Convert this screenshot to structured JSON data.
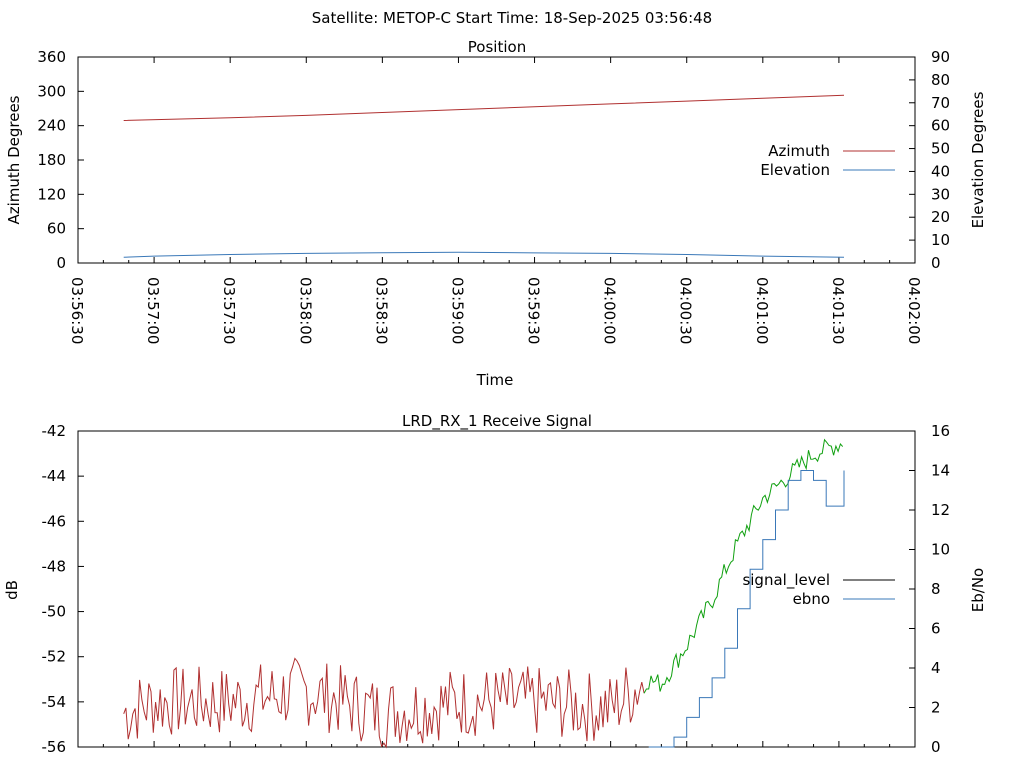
{
  "header": {
    "title": "Satellite: METOP-C    Start Time: 18-Sep-2025 03:56:48"
  },
  "colors": {
    "azimuth": "#b03030",
    "elevation": "#3a78b8",
    "signal_level_red": "#b03030",
    "signal_level_green": "#10a010",
    "signal_level_legend": "#000000",
    "ebno": "#3a78b8"
  },
  "chart_data": [
    {
      "type": "line",
      "title": "Position",
      "xlabel": "Time",
      "ylabel": "Azimuth Degrees",
      "y2label": "Elevation Degrees",
      "x_ticks": [
        "03:56:30",
        "03:57:00",
        "03:57:30",
        "03:58:00",
        "03:58:30",
        "03:59:00",
        "03:59:30",
        "04:00:00",
        "04:00:30",
        "04:01:00",
        "04:01:30",
        "04:02:00"
      ],
      "xlim_seconds": [
        0,
        330
      ],
      "ylim": [
        0,
        360
      ],
      "y_ticks": [
        0,
        60,
        120,
        180,
        240,
        300,
        360
      ],
      "y2lim": [
        0,
        90
      ],
      "y2_ticks": [
        0,
        10,
        20,
        30,
        40,
        50,
        60,
        70,
        80,
        90
      ],
      "legend": "right",
      "grid": false,
      "series": [
        {
          "name": "Azimuth",
          "axis": "left",
          "x": [
            "03:56:48",
            "03:57:30",
            "03:58:00",
            "03:58:30",
            "03:59:00",
            "03:59:30",
            "04:00:00",
            "04:00:30",
            "04:01:00",
            "04:01:32"
          ],
          "y": [
            249,
            254,
            258,
            263,
            268,
            273,
            278,
            283,
            288,
            293
          ]
        },
        {
          "name": "Elevation",
          "axis": "right",
          "x": [
            "03:56:48",
            "03:57:00",
            "03:57:30",
            "03:58:00",
            "03:58:30",
            "03:59:00",
            "03:59:30",
            "04:00:00",
            "04:00:30",
            "04:01:00",
            "04:01:32"
          ],
          "y": [
            2.5,
            3,
            3.7,
            4.2,
            4.5,
            4.7,
            4.4,
            4.2,
            3.7,
            3,
            2.5
          ]
        }
      ]
    },
    {
      "type": "line",
      "title": "LRD_RX_1 Receive Signal",
      "ylabel": "dB",
      "y2label": "Eb/No",
      "xlim_seconds": [
        0,
        330
      ],
      "ylim": [
        -56,
        -42
      ],
      "y_ticks": [
        -56,
        -54,
        -52,
        -50,
        -48,
        -46,
        -44,
        -42
      ],
      "y2lim": [
        0,
        16
      ],
      "y2_ticks": [
        0,
        2,
        4,
        6,
        8,
        10,
        12,
        14,
        16
      ],
      "legend": "right",
      "series": [
        {
          "name": "signal_level",
          "axis": "left",
          "noise_segment_end": "04:00:14",
          "x": [
            "03:56:48",
            "03:57:00",
            "03:57:30",
            "03:58:00",
            "03:58:30",
            "03:59:00",
            "03:59:30",
            "04:00:00",
            "04:00:14",
            "04:00:20",
            "04:00:30",
            "04:00:40",
            "04:00:50",
            "04:01:00",
            "04:01:10",
            "04:01:20",
            "04:01:32"
          ],
          "y": [
            -54.5,
            -54,
            -54,
            -53.5,
            -54.5,
            -54,
            -54,
            -54.3,
            -53,
            -53.2,
            -51.5,
            -49.5,
            -47,
            -45,
            -44,
            -43,
            -42.5
          ]
        },
        {
          "name": "ebno",
          "axis": "right",
          "x": [
            "04:00:15",
            "04:00:20",
            "04:00:25",
            "04:00:30",
            "04:00:35",
            "04:00:40",
            "04:00:45",
            "04:00:50",
            "04:00:55",
            "04:01:00",
            "04:01:05",
            "04:01:10",
            "04:01:15",
            "04:01:20",
            "04:01:25",
            "04:01:32"
          ],
          "y": [
            0,
            0,
            0.5,
            1.5,
            2.5,
            3.5,
            5,
            7,
            9,
            10.5,
            12,
            13.5,
            14,
            13.5,
            12.2,
            14
          ]
        }
      ]
    }
  ]
}
